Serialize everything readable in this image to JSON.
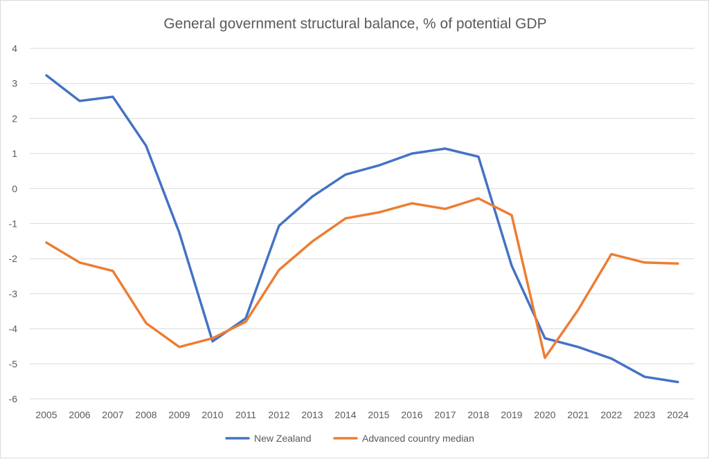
{
  "chart_data": {
    "type": "line",
    "title": "General government structural balance, % of potential GDP",
    "xlabel": "",
    "ylabel": "",
    "categories": [
      "2005",
      "2006",
      "2007",
      "2008",
      "2009",
      "2010",
      "2011",
      "2012",
      "2013",
      "2014",
      "2015",
      "2016",
      "2017",
      "2018",
      "2019",
      "2020",
      "2021",
      "2022",
      "2023",
      "2024"
    ],
    "ylim": [
      -6,
      4
    ],
    "yticks": [
      4,
      3,
      2,
      1,
      0,
      -1,
      -2,
      -3,
      -4,
      -5,
      -6
    ],
    "ytick_labels": [
      "4",
      "3",
      "2",
      "1",
      "0",
      "-1",
      "-2",
      "-3",
      "-4",
      "-5",
      "-6"
    ],
    "grid": "horizontal",
    "legend_position": "bottom",
    "series": [
      {
        "name": "New Zealand",
        "color": "#4472c4",
        "values": [
          3.23,
          2.5,
          2.62,
          1.22,
          -1.26,
          -4.36,
          -3.7,
          -1.06,
          -0.23,
          0.4,
          0.66,
          1.0,
          1.14,
          0.91,
          -2.2,
          -4.27,
          -4.52,
          -4.85,
          -5.37,
          -5.52
        ]
      },
      {
        "name": "Advanced country median",
        "color": "#ed7d31",
        "values": [
          -1.54,
          -2.11,
          -2.35,
          -3.84,
          -4.52,
          -4.27,
          -3.8,
          -2.32,
          -1.51,
          -0.85,
          -0.68,
          -0.42,
          -0.58,
          -0.28,
          -0.76,
          -4.83,
          -3.46,
          -1.87,
          -2.11,
          -2.14
        ]
      }
    ]
  }
}
